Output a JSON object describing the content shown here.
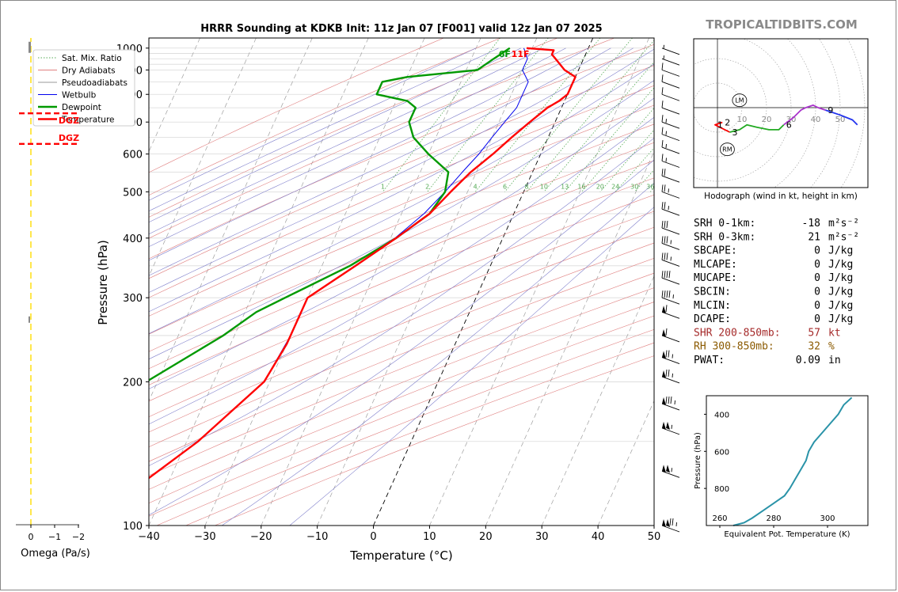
{
  "title": "HRRR Sounding at KDKB Init: 11z Jan 07 [F001] valid 12z Jan 07 2025",
  "brand": "TROPICALTIDBITS.COM",
  "colors": {
    "temperature": "#ff0000",
    "dewpoint": "#009900",
    "wetbulb": "#0000ee",
    "dry_adiabat": "#e08080",
    "moist_adiabat": "#8080cc",
    "pseudo_adiabat": "#999999",
    "mixing_ratio": "#55aa55",
    "isotherm_zero": "#000000",
    "hodo_green": "#22aa22",
    "hodo_purple": "#aa33cc",
    "hodo_blue": "#2233ee",
    "theta_e": "#2a93a8",
    "shr": "#a52a2a",
    "rh": "#8b5a00",
    "omega": "#ffdd00",
    "dgz": "#ff0000"
  },
  "legend": {
    "items": [
      {
        "label": "Sat. Mix. Ratio",
        "style": "dotted",
        "color": "#55aa55"
      },
      {
        "label": "Dry Adiabats",
        "style": "solid",
        "color": "#e08080"
      },
      {
        "label": "Pseudoadiabats",
        "style": "solid",
        "color": "#999999"
      },
      {
        "label": "Wetbulb",
        "style": "solid",
        "color": "#0000ee"
      },
      {
        "label": "Dewpoint",
        "style": "thick",
        "color": "#009900"
      },
      {
        "label": "Temperature",
        "style": "thick",
        "color": "#ff0000"
      }
    ]
  },
  "chart_data": {
    "type": "skewt",
    "xlabel": "Temperature (°C)",
    "ylabel": "Pressure (hPa)",
    "xlim": [
      -40,
      50
    ],
    "ylim": [
      1050,
      100
    ],
    "x_ticks": [
      -40,
      -30,
      -20,
      -10,
      0,
      10,
      20,
      30,
      40,
      50
    ],
    "y_ticks": [
      100,
      200,
      300,
      400,
      500,
      600,
      700,
      800,
      900,
      1000
    ],
    "mixing_ratio_labels": [
      "1",
      "2",
      "4",
      "6",
      "8",
      "10",
      "13",
      "16",
      "20",
      "24",
      "30",
      "36"
    ],
    "mixing_ratio_values": [
      1,
      2,
      4,
      6,
      8,
      10,
      13,
      16,
      20,
      24,
      30,
      36
    ],
    "temperature": [
      [
        1000,
        -11
      ],
      [
        990,
        -6
      ],
      [
        970,
        -6
      ],
      [
        950,
        -5
      ],
      [
        900,
        -2.5
      ],
      [
        870,
        0
      ],
      [
        850,
        0
      ],
      [
        800,
        0
      ],
      [
        775,
        -1
      ],
      [
        750,
        -2.5
      ],
      [
        700,
        -4.5
      ],
      [
        650,
        -6.5
      ],
      [
        600,
        -8.5
      ],
      [
        550,
        -11
      ],
      [
        500,
        -13
      ],
      [
        450,
        -15
      ],
      [
        400,
        -19
      ],
      [
        350,
        -24
      ],
      [
        300,
        -30
      ],
      [
        280,
        -30
      ],
      [
        250,
        -30
      ],
      [
        240,
        -30
      ],
      [
        200,
        -31
      ],
      [
        150,
        -38
      ],
      [
        125,
        -44
      ],
      [
        100,
        -49
      ]
    ],
    "dewpoint": [
      [
        1000,
        -14
      ],
      [
        950,
        -16
      ],
      [
        900,
        -18
      ],
      [
        870,
        -30
      ],
      [
        850,
        -34
      ],
      [
        800,
        -34
      ],
      [
        775,
        -28
      ],
      [
        750,
        -26
      ],
      [
        700,
        -26
      ],
      [
        650,
        -24
      ],
      [
        600,
        -20
      ],
      [
        550,
        -15
      ],
      [
        500,
        -14
      ],
      [
        450,
        -15
      ],
      [
        400,
        -19
      ],
      [
        350,
        -25
      ],
      [
        300,
        -34
      ],
      [
        280,
        -38
      ],
      [
        250,
        -42
      ],
      [
        200,
        -52
      ],
      [
        150,
        -56
      ],
      [
        125,
        -60
      ],
      [
        100,
        -64
      ]
    ],
    "wetbulb": [
      [
        1000,
        -11.5
      ],
      [
        950,
        -10
      ],
      [
        900,
        -10
      ],
      [
        850,
        -8
      ],
      [
        800,
        -8
      ],
      [
        750,
        -8
      ],
      [
        700,
        -9
      ],
      [
        650,
        -10
      ],
      [
        600,
        -11
      ],
      [
        550,
        -12.5
      ],
      [
        500,
        -14
      ],
      [
        450,
        -16
      ],
      [
        400,
        -19.2
      ],
      [
        350,
        -24
      ],
      [
        300,
        -30
      ],
      [
        280,
        -30
      ],
      [
        250,
        -30
      ],
      [
        200,
        -31
      ],
      [
        150,
        -38
      ],
      [
        125,
        -44
      ],
      [
        100,
        -49
      ]
    ],
    "surface_labels": {
      "dewpoint": "6F",
      "temperature": "11F"
    },
    "wind_barbs": [
      {
        "p": 100,
        "kt": 125
      },
      {
        "p": 130,
        "kt": 105
      },
      {
        "p": 160,
        "kt": 105
      },
      {
        "p": 180,
        "kt": 85
      },
      {
        "p": 205,
        "kt": 75
      },
      {
        "p": 225,
        "kt": 75
      },
      {
        "p": 250,
        "kt": 60
      },
      {
        "p": 280,
        "kt": 60
      },
      {
        "p": 300,
        "kt": 45
      },
      {
        "p": 330,
        "kt": 40
      },
      {
        "p": 360,
        "kt": 35
      },
      {
        "p": 390,
        "kt": 35
      },
      {
        "p": 420,
        "kt": 30
      },
      {
        "p": 460,
        "kt": 25
      },
      {
        "p": 500,
        "kt": 25
      },
      {
        "p": 540,
        "kt": 20
      },
      {
        "p": 580,
        "kt": 15
      },
      {
        "p": 620,
        "kt": 15
      },
      {
        "p": 660,
        "kt": 15
      },
      {
        "p": 700,
        "kt": 15
      },
      {
        "p": 750,
        "kt": 10
      },
      {
        "p": 800,
        "kt": 10
      },
      {
        "p": 850,
        "kt": 10
      },
      {
        "p": 900,
        "kt": 10
      },
      {
        "p": 950,
        "kt": 5
      },
      {
        "p": 1000,
        "kt": 5
      }
    ]
  },
  "hodograph": {
    "caption": "Hodograph (wind in kt, height in km)",
    "ring_labels": [
      "10",
      "20",
      "30",
      "40",
      "50"
    ],
    "height_labels": [
      "1",
      "2",
      "3",
      "6",
      "9"
    ],
    "lm_label": "LM",
    "rm_label": "RM",
    "segments": [
      {
        "color": "#ff0000",
        "points": [
          [
            2,
            6
          ],
          [
            -1,
            7
          ],
          [
            5,
            10
          ]
        ]
      },
      {
        "color": "#22aa22",
        "points": [
          [
            5,
            10
          ],
          [
            9,
            9
          ],
          [
            12,
            7
          ],
          [
            16,
            8
          ],
          [
            21,
            9
          ],
          [
            25,
            9
          ],
          [
            27,
            7
          ]
        ]
      },
      {
        "color": "#aa33cc",
        "points": [
          [
            27,
            7
          ],
          [
            31,
            4
          ],
          [
            34,
            1
          ],
          [
            36,
            0
          ],
          [
            39,
            -1
          ],
          [
            41,
            0
          ],
          [
            44,
            1
          ]
        ]
      },
      {
        "color": "#2233ee",
        "points": [
          [
            44,
            1
          ],
          [
            50,
            3
          ],
          [
            55,
            5
          ],
          [
            57,
            7
          ]
        ]
      }
    ],
    "height_marks": [
      {
        "label": "1",
        "at": [
          -1,
          7
        ]
      },
      {
        "label": "2",
        "at": [
          2,
          6
        ]
      },
      {
        "label": "3",
        "at": [
          5,
          10
        ]
      },
      {
        "label": "6",
        "at": [
          27,
          7
        ]
      },
      {
        "label": "9",
        "at": [
          44,
          1
        ]
      }
    ],
    "lm": [
      9,
      -3
    ],
    "rm": [
      4,
      17
    ]
  },
  "indices": [
    {
      "label": "SRH 0-1km:",
      "value": "-18",
      "unit": "m²s⁻²",
      "color": "#000000"
    },
    {
      "label": "SRH 0-3km:",
      "value": "21",
      "unit": "m²s⁻²",
      "color": "#000000"
    },
    {
      "label": "SBCAPE:",
      "value": "0",
      "unit": "J/kg",
      "color": "#000000"
    },
    {
      "label": "MLCAPE:",
      "value": "0",
      "unit": "J/kg",
      "color": "#000000"
    },
    {
      "label": "MUCAPE:",
      "value": "0",
      "unit": "J/kg",
      "color": "#000000"
    },
    {
      "label": "SBCIN:",
      "value": "0",
      "unit": "J/kg",
      "color": "#000000"
    },
    {
      "label": "MLCIN:",
      "value": "0",
      "unit": "J/kg",
      "color": "#000000"
    },
    {
      "label": "DCAPE:",
      "value": "0",
      "unit": "J/kg",
      "color": "#000000"
    },
    {
      "label": "SHR 200-850mb:",
      "value": "57",
      "unit": "kt",
      "color": "#a52a2a"
    },
    {
      "label": "RH 300-850mb:",
      "value": "32",
      "unit": "%",
      "color": "#8b5a00"
    },
    {
      "label": "PWAT:",
      "value": "0.09",
      "unit": "in",
      "color": "#000000"
    }
  ],
  "theta_e_chart": {
    "xlabel": "Equivalent Pot. Temperature (K)",
    "ylabel": "Pressure (hPa)",
    "x_ticks": [
      "260",
      "280",
      "300"
    ],
    "y_ticks": [
      "400",
      "600",
      "800"
    ],
    "xlim": [
      255,
      315
    ],
    "ylim": [
      1000,
      300
    ],
    "points": [
      [
        265,
        1000
      ],
      [
        269,
        985
      ],
      [
        272,
        960
      ],
      [
        276,
        920
      ],
      [
        280,
        880
      ],
      [
        284,
        840
      ],
      [
        286,
        800
      ],
      [
        288,
        750
      ],
      [
        290,
        700
      ],
      [
        292,
        650
      ],
      [
        293,
        600
      ],
      [
        295,
        550
      ],
      [
        298,
        500
      ],
      [
        301,
        450
      ],
      [
        304,
        400
      ],
      [
        306,
        350
      ],
      [
        309,
        310
      ]
    ]
  },
  "omega_panel": {
    "xlabel": "Omega (Pa/s)",
    "x_ticks": [
      "0",
      "−1",
      "−2"
    ],
    "dgz_label": "DGZ",
    "dgz_pressures": [
      630,
      730
    ]
  }
}
